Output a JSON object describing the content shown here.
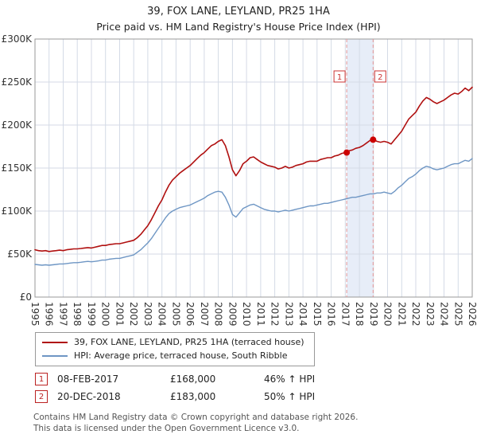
{
  "title": "39, FOX LANE, LEYLAND, PR25 1HA",
  "subtitle": "Price paid vs. HM Land Registry's House Price Index (HPI)",
  "chart_data": {
    "type": "line",
    "x_start": 1995,
    "x_step": 0.25,
    "x_range": [
      1995,
      2026
    ],
    "y_range": [
      0,
      300000
    ],
    "y_ticks": [
      0,
      50000,
      100000,
      150000,
      200000,
      250000,
      300000
    ],
    "y_tick_labels": [
      "£0",
      "£50K",
      "£100K",
      "£150K",
      "£200K",
      "£250K",
      "£300K"
    ],
    "x_tick_labels": [
      "1995",
      "1996",
      "1997",
      "1998",
      "1999",
      "2000",
      "2001",
      "2002",
      "2003",
      "2004",
      "2005",
      "2006",
      "2007",
      "2008",
      "2009",
      "2010",
      "2011",
      "2012",
      "2013",
      "2014",
      "2015",
      "2016",
      "2017",
      "2018",
      "2019",
      "2020",
      "2021",
      "2022",
      "2023",
      "2024",
      "2025",
      "2026"
    ],
    "grid": true,
    "grid_color": "#d4dae6",
    "border_color": "#999999",
    "band_color": "#e7edf8",
    "dashed_line_color": "#e59595",
    "marker_dot_color": "#cc0000",
    "marker_box_color": "#cc3333",
    "series": [
      {
        "name": "39, FOX LANE, LEYLAND, PR25 1HA (terraced house)",
        "color": "#b01010",
        "width": 1.6,
        "values": [
          55000,
          54000,
          53500,
          54000,
          53000,
          53500,
          54000,
          54500,
          54000,
          55000,
          55500,
          56000,
          56000,
          56500,
          57000,
          57500,
          57000,
          58000,
          59000,
          60000,
          60000,
          61000,
          61500,
          62000,
          62000,
          63000,
          64000,
          65000,
          66000,
          69000,
          73000,
          78000,
          83000,
          90000,
          98000,
          106000,
          113000,
          122000,
          130000,
          136000,
          140000,
          144000,
          147000,
          150000,
          153000,
          157000,
          161000,
          165000,
          168000,
          172000,
          176000,
          178000,
          181000,
          183000,
          176000,
          163000,
          148000,
          141000,
          147000,
          155000,
          158000,
          162000,
          163000,
          160000,
          157000,
          155000,
          153000,
          152000,
          151000,
          149000,
          150000,
          152000,
          150000,
          151000,
          153000,
          154000,
          155000,
          157000,
          158000,
          158000,
          158000,
          160000,
          161000,
          162000,
          162000,
          164000,
          165000,
          167000,
          168000,
          170000,
          171000,
          173000,
          174000,
          176000,
          179000,
          182000,
          183000,
          181000,
          180000,
          181000,
          180000,
          178000,
          183000,
          188000,
          193000,
          200000,
          207000,
          211000,
          215000,
          222000,
          228000,
          232000,
          230000,
          227000,
          225000,
          227000,
          229000,
          232000,
          235000,
          237000,
          236000,
          239000,
          243000,
          240000,
          244000
        ]
      },
      {
        "name": "HPI: Average price, terraced house, South Ribble",
        "color": "#6e96c4",
        "width": 1.4,
        "values": [
          38000,
          37500,
          37000,
          37500,
          37000,
          37500,
          38000,
          38500,
          38500,
          39000,
          39500,
          40000,
          40000,
          40500,
          41000,
          41500,
          41000,
          41500,
          42000,
          43000,
          43000,
          44000,
          44500,
          45000,
          45000,
          46000,
          47000,
          48000,
          49000,
          52000,
          55000,
          59000,
          63000,
          68000,
          74000,
          80000,
          86000,
          92000,
          97000,
          100000,
          102000,
          104000,
          105000,
          106000,
          107000,
          109000,
          111000,
          113000,
          115000,
          118000,
          120000,
          122000,
          123000,
          122000,
          116000,
          107000,
          96000,
          93000,
          98000,
          103000,
          105000,
          107000,
          108000,
          106000,
          104000,
          102000,
          101000,
          100000,
          100000,
          99000,
          100000,
          101000,
          100000,
          101000,
          102000,
          103000,
          104000,
          105000,
          106000,
          106000,
          107000,
          108000,
          109000,
          109000,
          110000,
          111000,
          112000,
          113000,
          114000,
          115000,
          116000,
          116000,
          117000,
          118000,
          119000,
          120000,
          120000,
          121000,
          121000,
          122000,
          121000,
          120000,
          123000,
          127000,
          130000,
          134000,
          138000,
          140000,
          143000,
          147000,
          150000,
          152000,
          151000,
          149000,
          148000,
          149000,
          150000,
          152000,
          154000,
          155000,
          155000,
          157000,
          159000,
          158000,
          161000
        ]
      }
    ],
    "markers": [
      {
        "label": "1",
        "x": 2017.1,
        "y": 168000
      },
      {
        "label": "2",
        "x": 2018.97,
        "y": 183000
      }
    ]
  },
  "sales": [
    {
      "num": "1",
      "date": "08-FEB-2017",
      "price": "£168,000",
      "hpi": "46% ↑ HPI"
    },
    {
      "num": "2",
      "date": "20-DEC-2018",
      "price": "£183,000",
      "hpi": "50% ↑ HPI"
    }
  ],
  "footer": {
    "line1": "Contains HM Land Registry data © Crown copyright and database right 2026.",
    "line2": "This data is licensed under the Open Government Licence v3.0."
  }
}
